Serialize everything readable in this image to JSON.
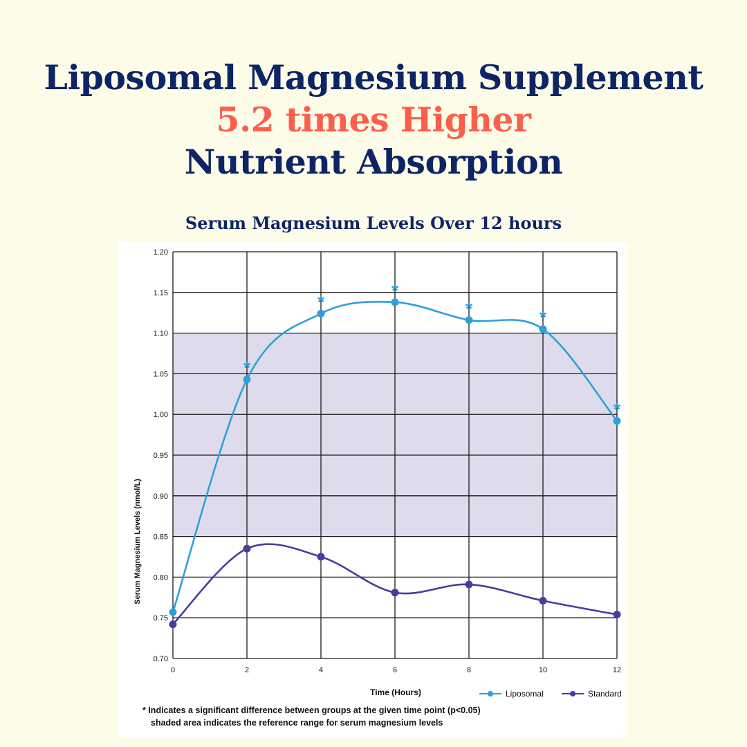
{
  "headline": {
    "line1": "Liposomal Magnesium Supplement",
    "line2": "5.2 times Higher",
    "line3": "Nutrient Absorption"
  },
  "colors": {
    "background": "#fcfce9",
    "navy": "#0d2466",
    "accent": "#fb5f4b",
    "liposomal": "#2f9fdc",
    "standard": "#4b3aa0",
    "reference_band": "#dedcec"
  },
  "chart_data": {
    "type": "line",
    "title": "Serum Magnesium Levels Over 12 hours",
    "xlabel": "Time (Hours)",
    "ylabel": "Serum Magnesium Levels  (nmol/L)",
    "x": [
      0,
      2,
      4,
      6,
      8,
      10,
      12
    ],
    "xlim": [
      0,
      12
    ],
    "ylim": [
      0.7,
      1.2
    ],
    "xticks": [
      "0",
      "2",
      "4",
      "6",
      "8",
      "10",
      "12"
    ],
    "yticks": [
      "0.70",
      "0.75",
      "0.80",
      "0.85",
      "0.90",
      "0.95",
      "1.00",
      "1.05",
      "1.10",
      "1.15",
      "1.20"
    ],
    "grid": true,
    "legend_position": "bottom-right",
    "reference_range": [
      0.85,
      1.1
    ],
    "series": [
      {
        "name": "Liposomal",
        "values": [
          0.757,
          1.043,
          1.124,
          1.138,
          1.116,
          1.105,
          0.992
        ],
        "significant": [
          false,
          true,
          true,
          true,
          true,
          true,
          true
        ]
      },
      {
        "name": "Standard",
        "values": [
          0.742,
          0.835,
          0.825,
          0.781,
          0.791,
          0.771,
          0.754
        ]
      }
    ],
    "significance_marker": "*"
  },
  "footnote": {
    "line1": "* Indicates a significant difference between groups at the given time point (p<0.05)",
    "line2": "shaded area indicates the reference range for serum magnesium levels"
  }
}
